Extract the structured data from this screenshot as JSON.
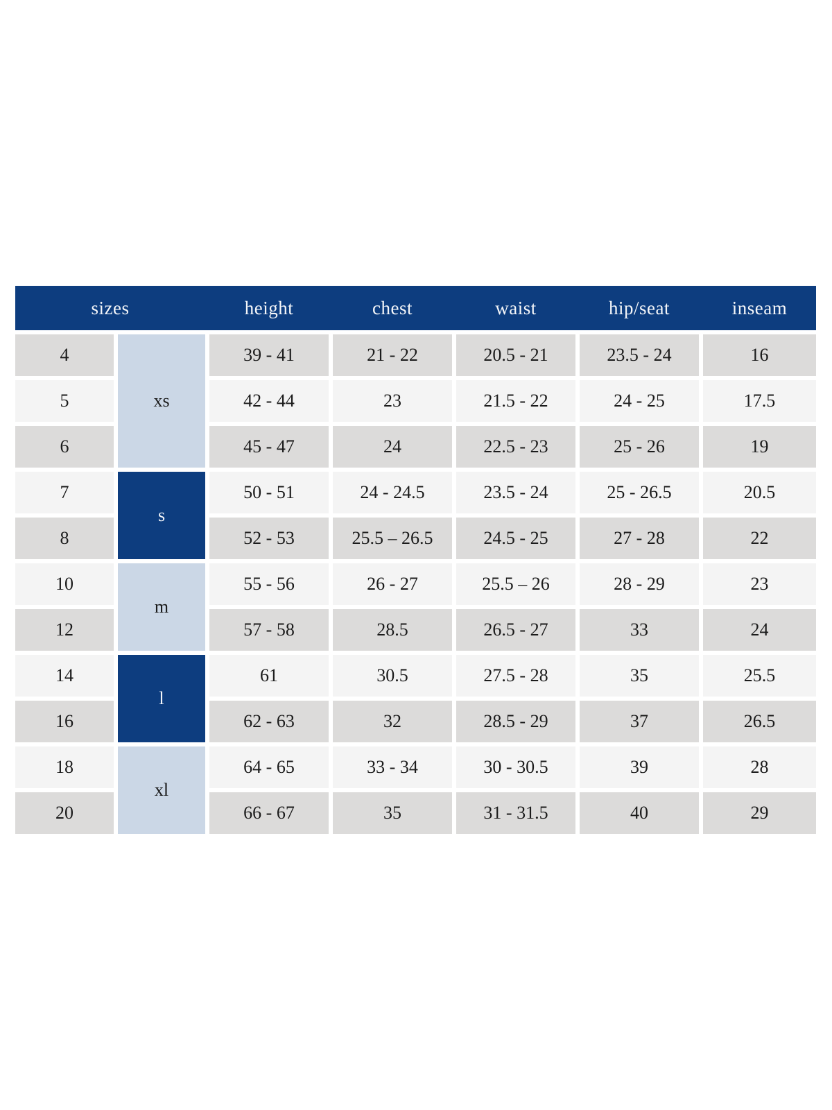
{
  "colors": {
    "navy": "#0d3d7f",
    "light_blue": "#cbd7e6",
    "row_gray": "#dcdbda",
    "row_light": "#f4f4f4",
    "text_dark": "#1b1b1b",
    "header_text": "#f4f6f9"
  },
  "table": {
    "headers": {
      "sizes": "sizes",
      "height": "height",
      "chest": "chest",
      "waist": "waist",
      "hip_seat": "hip/seat",
      "inseam": "inseam"
    },
    "groups": [
      {
        "label": "xs",
        "span_rows": 3
      },
      {
        "label": "s",
        "span_rows": 2
      },
      {
        "label": "m",
        "span_rows": 2
      },
      {
        "label": "l",
        "span_rows": 2
      },
      {
        "label": "xl",
        "span_rows": 2
      }
    ],
    "rows": [
      {
        "size": "4",
        "height": "39 - 41",
        "chest": "21 - 22",
        "waist": "20.5 - 21",
        "hip_seat": "23.5 - 24",
        "inseam": "16"
      },
      {
        "size": "5",
        "height": "42 - 44",
        "chest": "23",
        "waist": "21.5 - 22",
        "hip_seat": "24 - 25",
        "inseam": "17.5"
      },
      {
        "size": "6",
        "height": "45 - 47",
        "chest": "24",
        "waist": "22.5 - 23",
        "hip_seat": "25 - 26",
        "inseam": "19"
      },
      {
        "size": "7",
        "height": "50 - 51",
        "chest": "24 - 24.5",
        "waist": "23.5 - 24",
        "hip_seat": "25 - 26.5",
        "inseam": "20.5"
      },
      {
        "size": "8",
        "height": "52 - 53",
        "chest": "25.5 – 26.5",
        "waist": "24.5 - 25",
        "hip_seat": "27 - 28",
        "inseam": "22"
      },
      {
        "size": "10",
        "height": "55 - 56",
        "chest": "26 - 27",
        "waist": "25.5 – 26",
        "hip_seat": "28 - 29",
        "inseam": "23"
      },
      {
        "size": "12",
        "height": "57 - 58",
        "chest": "28.5",
        "waist": "26.5 - 27",
        "hip_seat": "33",
        "inseam": "24"
      },
      {
        "size": "14",
        "height": "61",
        "chest": "30.5",
        "waist": "27.5 - 28",
        "hip_seat": "35",
        "inseam": "25.5"
      },
      {
        "size": "16",
        "height": "62 - 63",
        "chest": "32",
        "waist": "28.5 - 29",
        "hip_seat": "37",
        "inseam": "26.5"
      },
      {
        "size": "18",
        "height": "64 - 65",
        "chest": "33 - 34",
        "waist": "30 - 30.5",
        "hip_seat": "39",
        "inseam": "28"
      },
      {
        "size": "20",
        "height": "66 - 67",
        "chest": "35",
        "waist": "31 - 31.5",
        "hip_seat": "40",
        "inseam": "29"
      }
    ]
  }
}
